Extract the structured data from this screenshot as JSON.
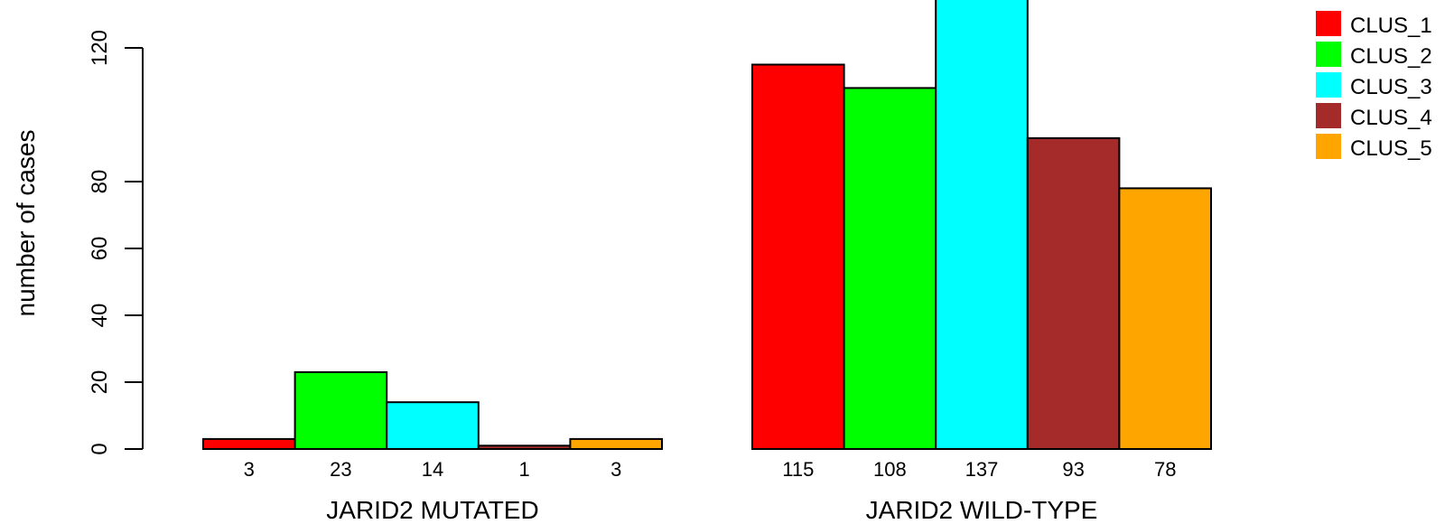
{
  "chart_data": {
    "type": "bar",
    "title": "",
    "ylabel": "number of cases",
    "yticks": [
      0,
      20,
      40,
      60,
      80,
      120
    ],
    "ylim": [
      0,
      137
    ],
    "groups": [
      {
        "label": "JARID2 MUTATED",
        "values": [
          3,
          23,
          14,
          1,
          3
        ],
        "value_labels": [
          "3",
          "23",
          "14",
          "1",
          "3"
        ]
      },
      {
        "label": "JARID2 WILD-TYPE",
        "values": [
          115,
          108,
          137,
          93,
          78
        ],
        "value_labels": [
          "115",
          "108",
          "137",
          "93",
          "78"
        ]
      }
    ],
    "series": [
      {
        "name": "CLUS_1",
        "color": "#ff0000"
      },
      {
        "name": "CLUS_2",
        "color": "#00ff00"
      },
      {
        "name": "CLUS_3",
        "color": "#00ffff"
      },
      {
        "name": "CLUS_4",
        "color": "#a52a2a"
      },
      {
        "name": "CLUS_5",
        "color": "#ffa500"
      }
    ],
    "legend_position": "top-right",
    "grid": false
  }
}
